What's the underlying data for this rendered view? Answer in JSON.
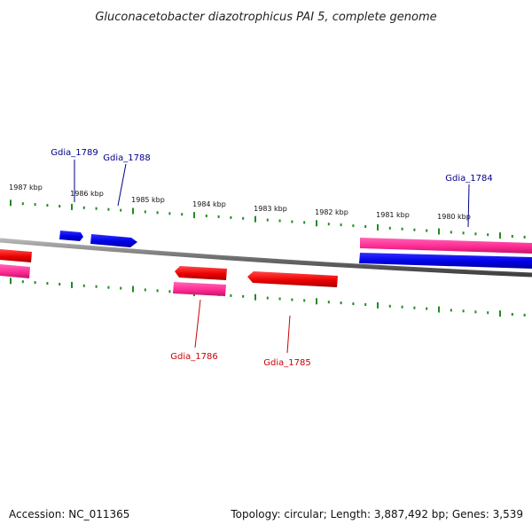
{
  "title": "Gluconacetobacter diazotrophicus PAI 5, complete genome",
  "footer": {
    "accession": "Accession: NC_011365",
    "topology": "Topology: circular; Length: 3,887,492 bp; Genes: 3,539"
  },
  "colors": {
    "forward_gene": "#0000ee",
    "reverse_gene": "#ee0000",
    "cds_feature": "#ff3399",
    "backbone": "#7a7a7a",
    "ticks": "#228b22",
    "forward_label": "#00008b",
    "reverse_label": "#cc0000"
  },
  "scale_labels": [
    "1987 kbp",
    "1986 kbp",
    "1985 kbp",
    "1984 kbp",
    "1983 kbp",
    "1982 kbp",
    "1981 kbp",
    "1980 kbp"
  ],
  "genes": [
    {
      "id": "Gdia_1789",
      "strand": "forward"
    },
    {
      "id": "Gdia_1788",
      "strand": "forward"
    },
    {
      "id": "Gdia_1784",
      "strand": "forward"
    },
    {
      "id": "Gdia_1786",
      "strand": "reverse"
    },
    {
      "id": "Gdia_1785",
      "strand": "reverse"
    }
  ]
}
